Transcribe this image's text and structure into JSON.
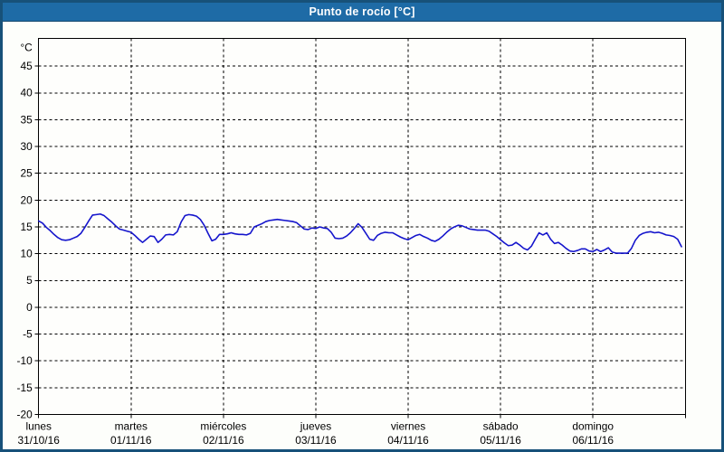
{
  "window": {
    "title": "Punto de rocío [°C]"
  },
  "colors": {
    "titlebar_bg": "#1e6ba6",
    "window_border": "#175179",
    "plot_bg": "#fefefc",
    "grid": "#000000",
    "text": "#000000",
    "line": "#1414cc"
  },
  "chart_data": {
    "type": "line",
    "title": "Punto de rocío [°C]",
    "unit": "°C",
    "grid": "dashed",
    "legend": "none",
    "ylim": [
      -20,
      50.2
    ],
    "y_ticks": [
      45,
      40,
      35,
      30,
      25,
      20,
      15,
      10,
      5,
      0,
      -5,
      -10,
      -15,
      -20
    ],
    "x_axis": {
      "hours_per_day": 24,
      "total_hours": 168,
      "days": [
        {
          "name": "lunes",
          "date": "31/10/16"
        },
        {
          "name": "martes",
          "date": "01/11/16"
        },
        {
          "name": "miércoles",
          "date": "02/11/16"
        },
        {
          "name": "jueves",
          "date": "03/11/16"
        },
        {
          "name": "viernes",
          "date": "04/11/16"
        },
        {
          "name": "sábado",
          "date": "05/11/16"
        },
        {
          "name": "domingo",
          "date": "06/11/16"
        }
      ]
    },
    "series": [
      {
        "name": "Punto de rocío",
        "color": "#1414cc",
        "x_start_hour": 0,
        "x_step_hours": 1,
        "values": [
          16.1,
          15.7,
          14.9,
          14.3,
          13.6,
          13.0,
          12.6,
          12.5,
          12.6,
          12.9,
          13.2,
          13.8,
          14.9,
          16.1,
          17.2,
          17.3,
          17.4,
          17.1,
          16.5,
          15.9,
          15.2,
          14.6,
          14.4,
          14.2,
          14.0,
          13.4,
          12.7,
          12.1,
          12.7,
          13.3,
          13.2,
          12.1,
          12.7,
          13.5,
          13.6,
          13.5,
          14.1,
          15.9,
          17.1,
          17.3,
          17.2,
          17.0,
          16.4,
          15.3,
          13.8,
          12.4,
          12.7,
          13.6,
          13.6,
          13.7,
          13.9,
          13.7,
          13.6,
          13.6,
          13.5,
          13.8,
          15.0,
          15.3,
          15.6,
          16.0,
          16.2,
          16.3,
          16.4,
          16.3,
          16.2,
          16.1,
          16.0,
          15.8,
          15.2,
          14.6,
          14.5,
          14.8,
          14.7,
          15.0,
          14.8,
          14.7,
          14.0,
          12.9,
          12.8,
          12.9,
          13.3,
          13.9,
          14.7,
          15.6,
          14.9,
          13.8,
          12.7,
          12.5,
          13.4,
          13.8,
          14.0,
          13.9,
          13.9,
          13.5,
          13.1,
          12.8,
          12.6,
          13.0,
          13.4,
          13.6,
          13.2,
          12.9,
          12.5,
          12.3,
          12.7,
          13.3,
          14.0,
          14.6,
          15.0,
          15.3,
          15.2,
          14.9,
          14.6,
          14.5,
          14.4,
          14.4,
          14.4,
          14.2,
          13.7,
          13.2,
          12.6,
          12.0,
          11.5,
          11.6,
          12.1,
          11.6,
          11.0,
          10.7,
          11.4,
          12.7,
          13.9,
          13.5,
          13.9,
          12.7,
          11.9,
          12.1,
          11.6,
          11.0,
          10.5,
          10.4,
          10.6,
          10.9,
          10.9,
          10.5,
          10.4,
          10.8,
          10.4,
          10.7,
          11.1,
          10.3,
          10.1,
          10.1,
          10.1,
          10.1,
          11.0,
          12.5,
          13.4,
          13.8,
          14.0,
          14.1,
          13.9,
          14.0,
          13.8,
          13.5,
          13.4,
          13.2,
          12.7,
          11.3
        ]
      }
    ]
  }
}
